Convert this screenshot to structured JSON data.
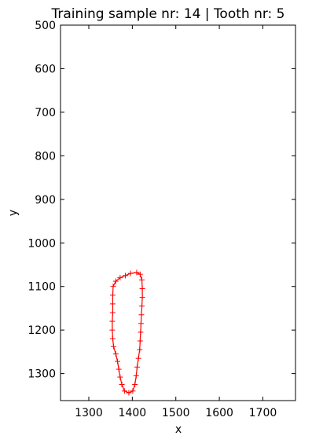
{
  "chart_data": {
    "type": "line",
    "title": "Training sample nr: 14 | Tooth nr: 5",
    "xlabel": "x",
    "ylabel": "y",
    "xlim": [
      1235,
      1775
    ],
    "ylim": [
      1362,
      500
    ],
    "y_inverted": true,
    "grid": false,
    "legend": "none",
    "x_ticks": [
      1300,
      1400,
      1500,
      1600,
      1700
    ],
    "y_ticks": [
      500,
      600,
      700,
      800,
      900,
      1000,
      1100,
      1200,
      1300
    ],
    "series": [
      {
        "color": "#ff0000",
        "marker": "plus",
        "closed": true,
        "points": [
          [
            1410,
            1068
          ],
          [
            1418,
            1072
          ],
          [
            1422,
            1085
          ],
          [
            1423,
            1105
          ],
          [
            1423,
            1125
          ],
          [
            1422,
            1145
          ],
          [
            1421,
            1165
          ],
          [
            1420,
            1185
          ],
          [
            1419,
            1205
          ],
          [
            1418,
            1225
          ],
          [
            1417,
            1245
          ],
          [
            1414,
            1265
          ],
          [
            1411,
            1285
          ],
          [
            1409,
            1305
          ],
          [
            1406,
            1325
          ],
          [
            1401,
            1340
          ],
          [
            1392,
            1344
          ],
          [
            1382,
            1340
          ],
          [
            1376,
            1325
          ],
          [
            1372,
            1308
          ],
          [
            1369,
            1290
          ],
          [
            1366,
            1272
          ],
          [
            1362,
            1255
          ],
          [
            1357,
            1238
          ],
          [
            1355,
            1220
          ],
          [
            1354,
            1200
          ],
          [
            1354,
            1180
          ],
          [
            1355,
            1160
          ],
          [
            1355,
            1140
          ],
          [
            1355,
            1120
          ],
          [
            1356,
            1100
          ],
          [
            1362,
            1088
          ],
          [
            1372,
            1080
          ],
          [
            1384,
            1075
          ],
          [
            1396,
            1070
          ]
        ]
      }
    ]
  }
}
